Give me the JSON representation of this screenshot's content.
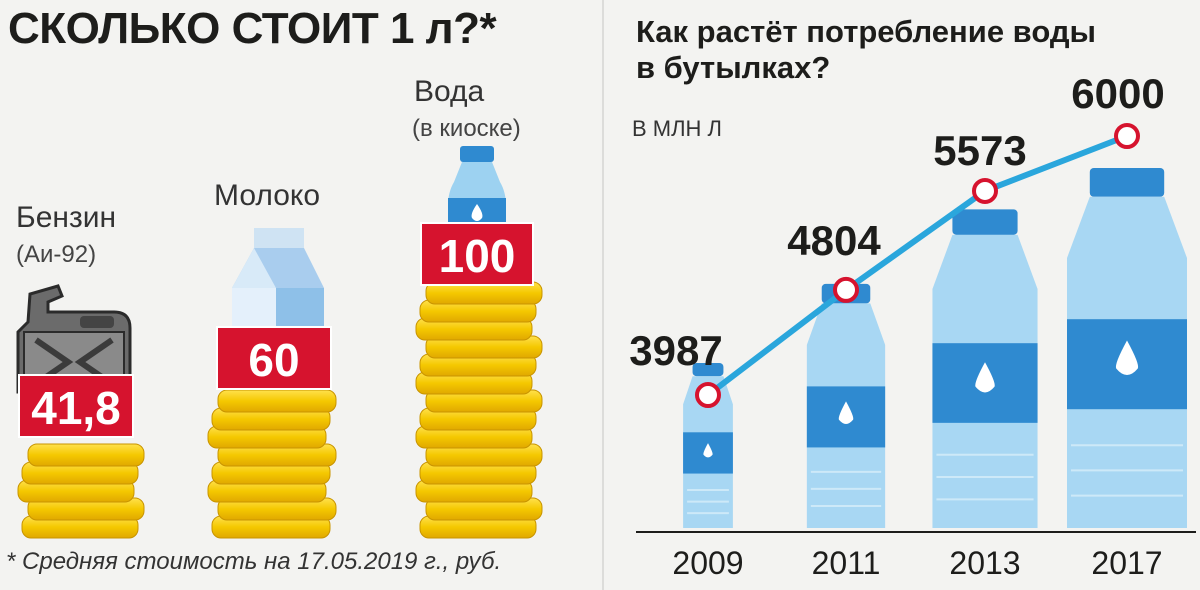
{
  "left_panel": {
    "title": "СКОЛЬКО СТОИТ 1 л?*",
    "footnote": "* Средняя стоимость на 17.05.2019 г., руб.",
    "products": [
      {
        "name": "Бензин",
        "subname": "(Аи-92)",
        "price": "41,8",
        "icon": "jerrycan-icon"
      },
      {
        "name": "Молоко",
        "subname": "",
        "price": "60",
        "icon": "milk-carton-icon"
      },
      {
        "name": "Вода",
        "subname": "(в киоске)",
        "price": "100",
        "icon": "water-bottle-icon"
      }
    ]
  },
  "chart_data": {
    "type": "line",
    "title": "Как растёт потребление воды в бутылках?",
    "unit": "в млн л",
    "categories": [
      "2009",
      "2011",
      "2013",
      "2017"
    ],
    "values": [
      3987,
      4804,
      5573,
      6000
    ],
    "value_labels": [
      "3987",
      "4804",
      "5573",
      "6000"
    ],
    "grid": false,
    "colors": {
      "line": "#2aa6dc",
      "marker": "#d6132e"
    }
  },
  "colors": {
    "price_box": "#d6132e",
    "coins": "#f5c800",
    "bottle": "#8ec9ec",
    "bottle_label": "#2f8ad0"
  }
}
